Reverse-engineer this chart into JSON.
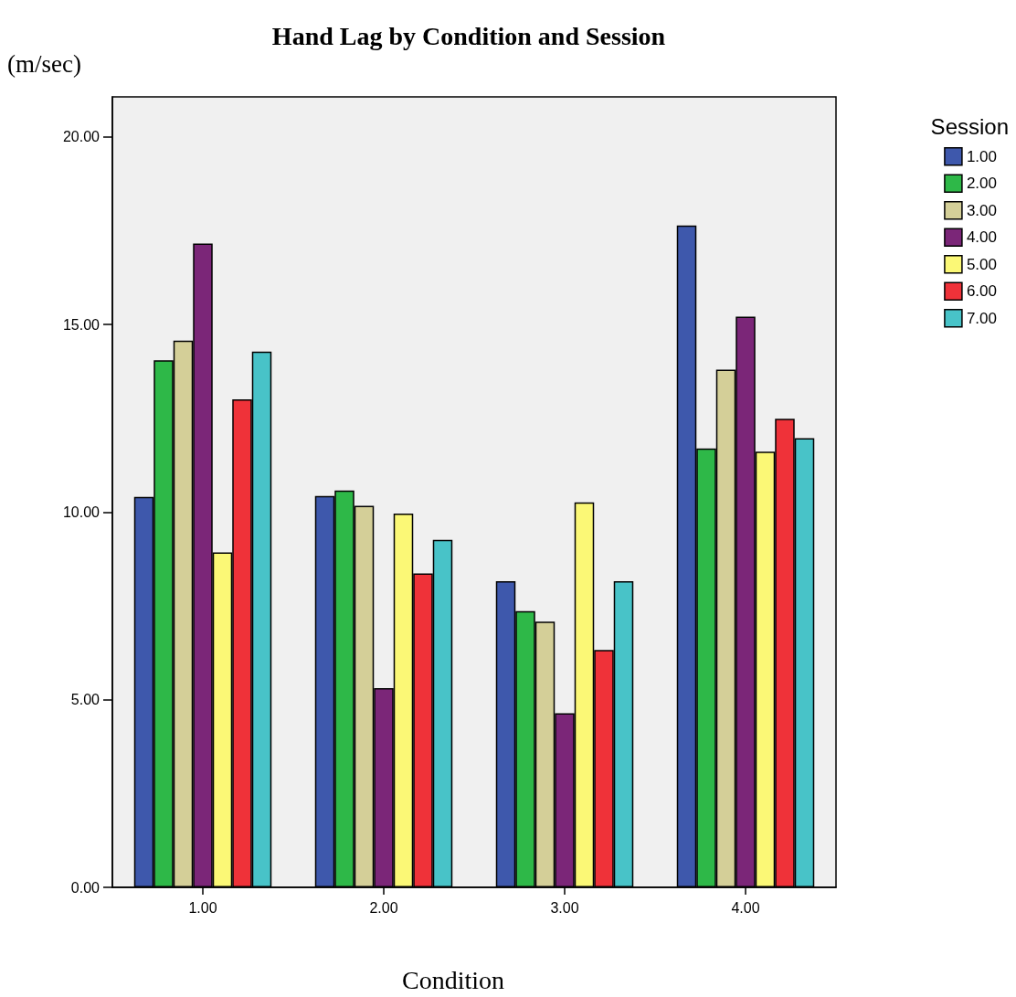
{
  "chart_data": {
    "type": "bar",
    "title": "Hand Lag by Condition and Session",
    "xlabel": "Condition",
    "ylabel": "(m/sec)",
    "legend_title": "Session",
    "categories": [
      "1.00",
      "2.00",
      "3.00",
      "4.00"
    ],
    "series": [
      {
        "name": "1.00",
        "color": "#3e58ac",
        "values": [
          10.41,
          10.43,
          8.16,
          17.64
        ]
      },
      {
        "name": "2.00",
        "color": "#2eb848",
        "values": [
          14.05,
          10.58,
          7.36,
          11.7
        ]
      },
      {
        "name": "3.00",
        "color": "#d4cf98",
        "values": [
          14.57,
          10.17,
          7.08,
          13.8
        ]
      },
      {
        "name": "4.00",
        "color": "#7b2678",
        "values": [
          17.16,
          5.31,
          4.64,
          15.21
        ]
      },
      {
        "name": "5.00",
        "color": "#fbf876",
        "values": [
          8.93,
          9.96,
          10.26,
          11.61
        ]
      },
      {
        "name": "6.00",
        "color": "#ef3239",
        "values": [
          13.01,
          8.37,
          6.33,
          12.49
        ]
      },
      {
        "name": "7.00",
        "color": "#48c3c8",
        "values": [
          14.28,
          9.26,
          8.16,
          11.97
        ]
      }
    ],
    "ylim": [
      0,
      21.07
    ],
    "yticks": [
      {
        "value": 0,
        "label": "0.00"
      },
      {
        "value": 5,
        "label": "5.00"
      },
      {
        "value": 10,
        "label": "10.00"
      },
      {
        "value": 15,
        "label": "15.00"
      },
      {
        "value": 20,
        "label": "20.00"
      }
    ],
    "grid": false,
    "legend": "top right"
  }
}
